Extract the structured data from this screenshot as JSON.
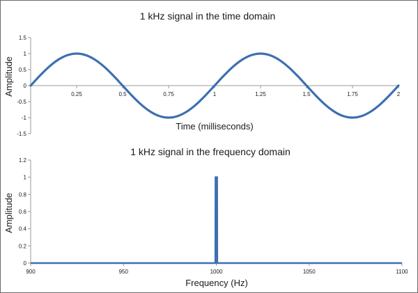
{
  "chart_data": [
    {
      "type": "line",
      "title": "1 kHz signal in the time domain",
      "xlabel": "Time (milliseconds)",
      "ylabel": "Amplitude",
      "xlim": [
        0,
        2
      ],
      "ylim": [
        -1.5,
        1.5
      ],
      "x_ticks": [
        0.25,
        0.5,
        0.75,
        1,
        1.25,
        1.5,
        1.75,
        2
      ],
      "x_tick_labels": [
        "0.25",
        "0.5",
        "0.75",
        "1",
        "1.25",
        "1.5",
        "1.75",
        "2"
      ],
      "y_ticks": [
        -1.5,
        -1,
        -0.5,
        0,
        0.5,
        1,
        1.5
      ],
      "y_tick_labels": [
        "-1.5",
        "-1",
        "-0.5",
        "0",
        "0.5",
        "1",
        "1.5"
      ],
      "grid": false,
      "legend": "none",
      "series": [
        {
          "color": "#3d6fb0",
          "x": [
            0,
            0.05,
            0.1,
            0.15,
            0.2,
            0.25,
            0.3,
            0.35,
            0.4,
            0.45,
            0.5,
            0.55,
            0.6,
            0.65,
            0.7,
            0.75,
            0.8,
            0.85,
            0.9,
            0.95,
            1,
            1.05,
            1.1,
            1.15,
            1.2,
            1.25,
            1.3,
            1.35,
            1.4,
            1.45,
            1.5,
            1.55,
            1.6,
            1.65,
            1.7,
            1.75,
            1.8,
            1.85,
            1.9,
            1.95,
            2
          ],
          "y": [
            0,
            0.309,
            0.588,
            0.809,
            0.951,
            1,
            0.951,
            0.809,
            0.588,
            0.309,
            0,
            -0.309,
            -0.588,
            -0.809,
            -0.951,
            -1,
            -0.951,
            -0.809,
            -0.588,
            -0.309,
            0,
            0.309,
            0.588,
            0.809,
            0.951,
            1,
            0.951,
            0.809,
            0.588,
            0.309,
            0,
            -0.309,
            -0.588,
            -0.809,
            -0.951,
            -1,
            -0.951,
            -0.809,
            -0.588,
            -0.309,
            0
          ]
        }
      ]
    },
    {
      "type": "line",
      "title": "1 kHz signal in the frequency domain",
      "xlabel": "Frequency (Hz)",
      "ylabel": "Amplitude",
      "xlim": [
        900,
        1100
      ],
      "ylim": [
        0,
        1.2
      ],
      "x_ticks": [
        900,
        950,
        1000,
        1050,
        1100
      ],
      "x_tick_labels": [
        "900",
        "950",
        "1000",
        "1050",
        "1100"
      ],
      "y_ticks": [
        0,
        0.2,
        0.4,
        0.6,
        0.8,
        1,
        1.2
      ],
      "y_tick_labels": [
        "0",
        "0.2",
        "0.4",
        "0.6",
        "0.8",
        "1",
        "1.2"
      ],
      "grid": false,
      "legend": "none",
      "series": [
        {
          "color": "#3d6fb0",
          "x": [
            900,
            999.5,
            999.6,
            1000.4,
            1000.5,
            1100
          ],
          "y": [
            0,
            0,
            1,
            1,
            0,
            0
          ]
        }
      ]
    }
  ]
}
